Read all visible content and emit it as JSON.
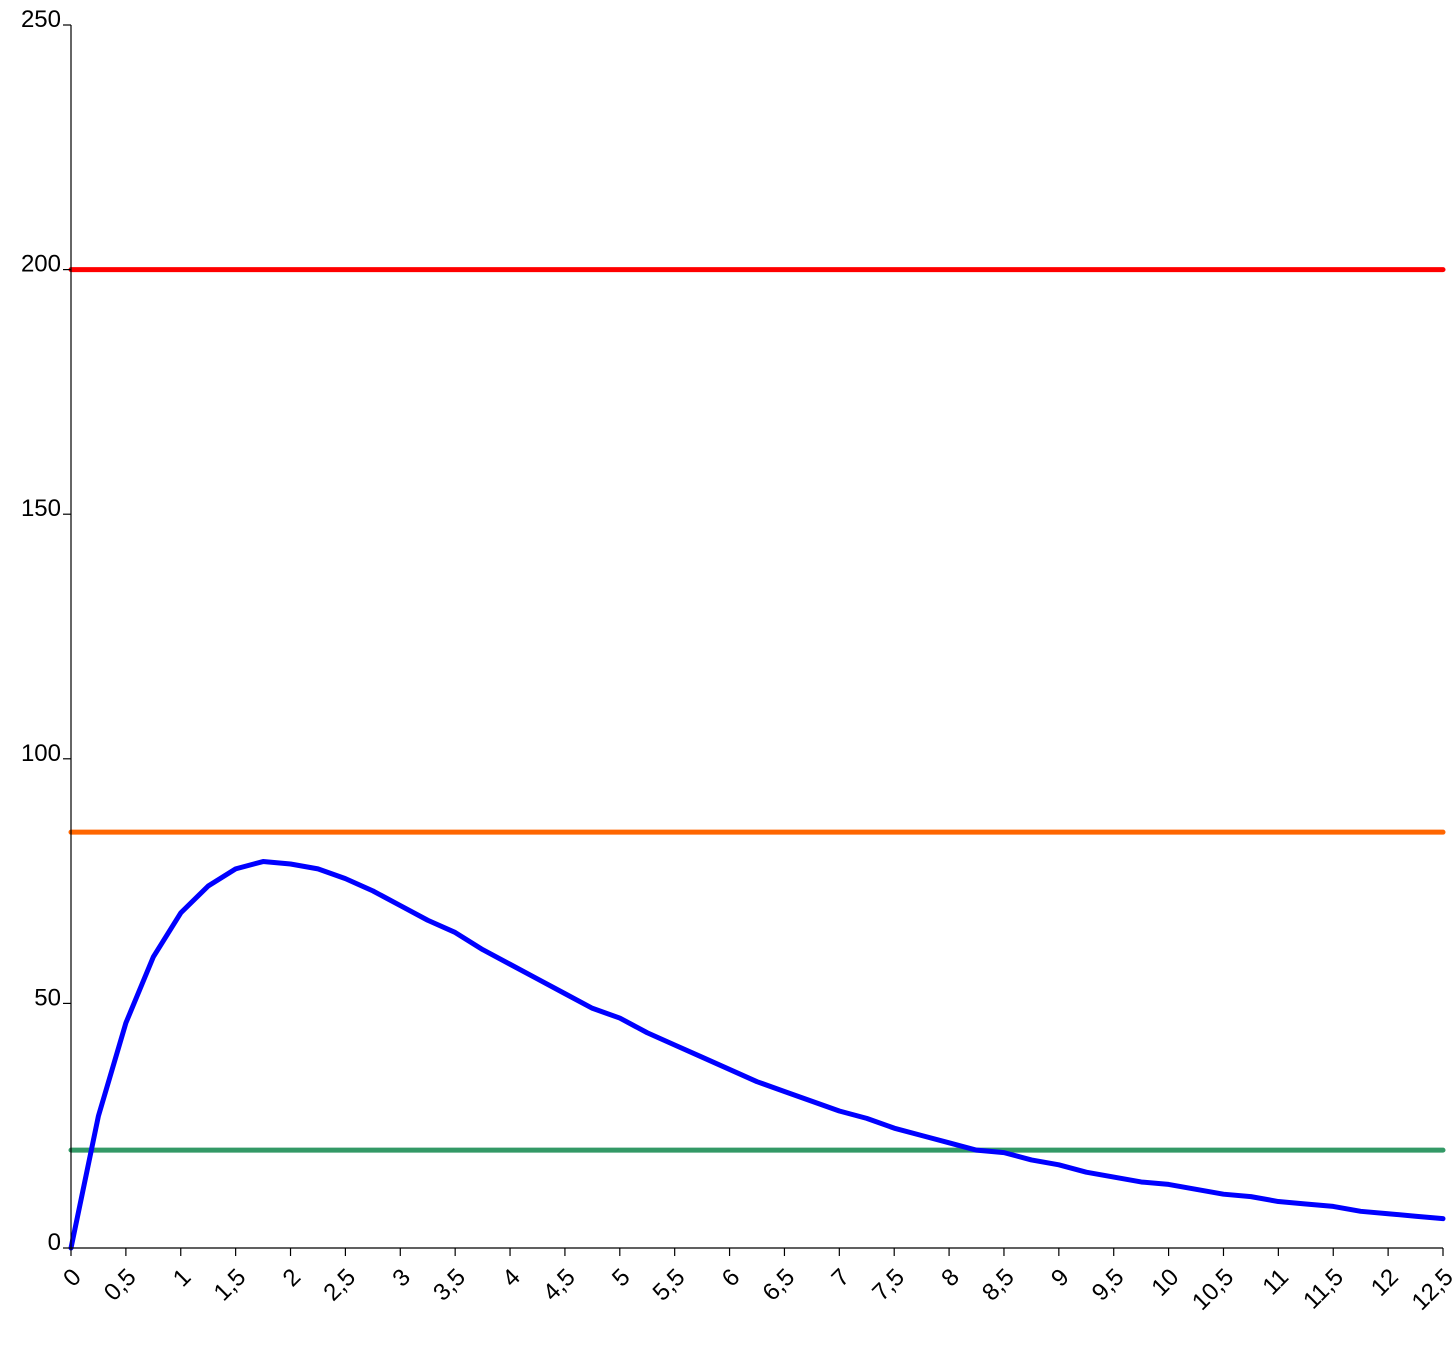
{
  "chart_data": {
    "type": "line",
    "title": "",
    "xlabel": "",
    "ylabel": "",
    "xlim": [
      0,
      12.5
    ],
    "ylim": [
      0,
      250
    ],
    "grid": false,
    "legend": "none",
    "y_ticks": [
      {
        "value": 0,
        "label": "0"
      },
      {
        "value": 50,
        "label": "50"
      },
      {
        "value": 100,
        "label": "100"
      },
      {
        "value": 150,
        "label": "150"
      },
      {
        "value": 200,
        "label": "200"
      },
      {
        "value": 250,
        "label": "250"
      }
    ],
    "x_ticks": [
      {
        "value": 0,
        "label": "0"
      },
      {
        "value": 0.5,
        "label": "0,5"
      },
      {
        "value": 1,
        "label": "1"
      },
      {
        "value": 1.5,
        "label": "1,5"
      },
      {
        "value": 2,
        "label": "2"
      },
      {
        "value": 2.5,
        "label": "2,5"
      },
      {
        "value": 3,
        "label": "3"
      },
      {
        "value": 3.5,
        "label": "3,5"
      },
      {
        "value": 4,
        "label": "4"
      },
      {
        "value": 4.5,
        "label": "4,5"
      },
      {
        "value": 5,
        "label": "5"
      },
      {
        "value": 5.5,
        "label": "5,5"
      },
      {
        "value": 6,
        "label": "6"
      },
      {
        "value": 6.5,
        "label": "6,5"
      },
      {
        "value": 7,
        "label": "7"
      },
      {
        "value": 7.5,
        "label": "7,5"
      },
      {
        "value": 8,
        "label": "8"
      },
      {
        "value": 8.5,
        "label": "8,5"
      },
      {
        "value": 9,
        "label": "9"
      },
      {
        "value": 9.5,
        "label": "9,5"
      },
      {
        "value": 10,
        "label": "10"
      },
      {
        "value": 10.5,
        "label": "10,5"
      },
      {
        "value": 11,
        "label": "11"
      },
      {
        "value": 11.5,
        "label": "11,5"
      },
      {
        "value": 12,
        "label": "12"
      },
      {
        "value": 12.5,
        "label": "12,5"
      }
    ],
    "series": [
      {
        "color": "#ff0000",
        "x": [
          0,
          12.5
        ],
        "y": [
          200,
          200
        ]
      },
      {
        "color": "#ff6600",
        "x": [
          0,
          12.5
        ],
        "y": [
          85,
          85
        ]
      },
      {
        "color": "#339966",
        "x": [
          0,
          12.5
        ],
        "y": [
          20,
          20
        ]
      },
      {
        "color": "#0000ff",
        "x": [
          0,
          0.25,
          0.5,
          0.75,
          1,
          1.25,
          1.5,
          1.75,
          2,
          2.25,
          2.5,
          2.75,
          3,
          3.25,
          3.5,
          3.75,
          4,
          4.25,
          4.5,
          4.75,
          5,
          5.25,
          5.5,
          5.75,
          6,
          6.25,
          6.5,
          6.75,
          7,
          7.25,
          7.5,
          7.75,
          8,
          8.25,
          8.5,
          8.75,
          9,
          9.25,
          9.5,
          9.75,
          10,
          10.25,
          10.5,
          10.75,
          11,
          11.25,
          11.5,
          11.75,
          12,
          12.25,
          12.5
        ],
        "y": [
          0,
          27,
          46,
          59.5,
          68.5,
          74,
          77.5,
          79,
          78.5,
          77.5,
          75.5,
          73,
          70,
          67,
          64.5,
          61,
          58,
          55,
          52,
          49,
          47,
          44,
          41.5,
          39,
          36.5,
          34,
          32,
          30,
          28,
          26.5,
          24.5,
          23,
          21.5,
          20,
          19.5,
          18,
          17,
          15.5,
          14.5,
          13.5,
          13,
          12,
          11,
          10.5,
          9.5,
          9,
          8.5,
          7.5,
          7,
          6.5,
          6
        ]
      }
    ]
  }
}
